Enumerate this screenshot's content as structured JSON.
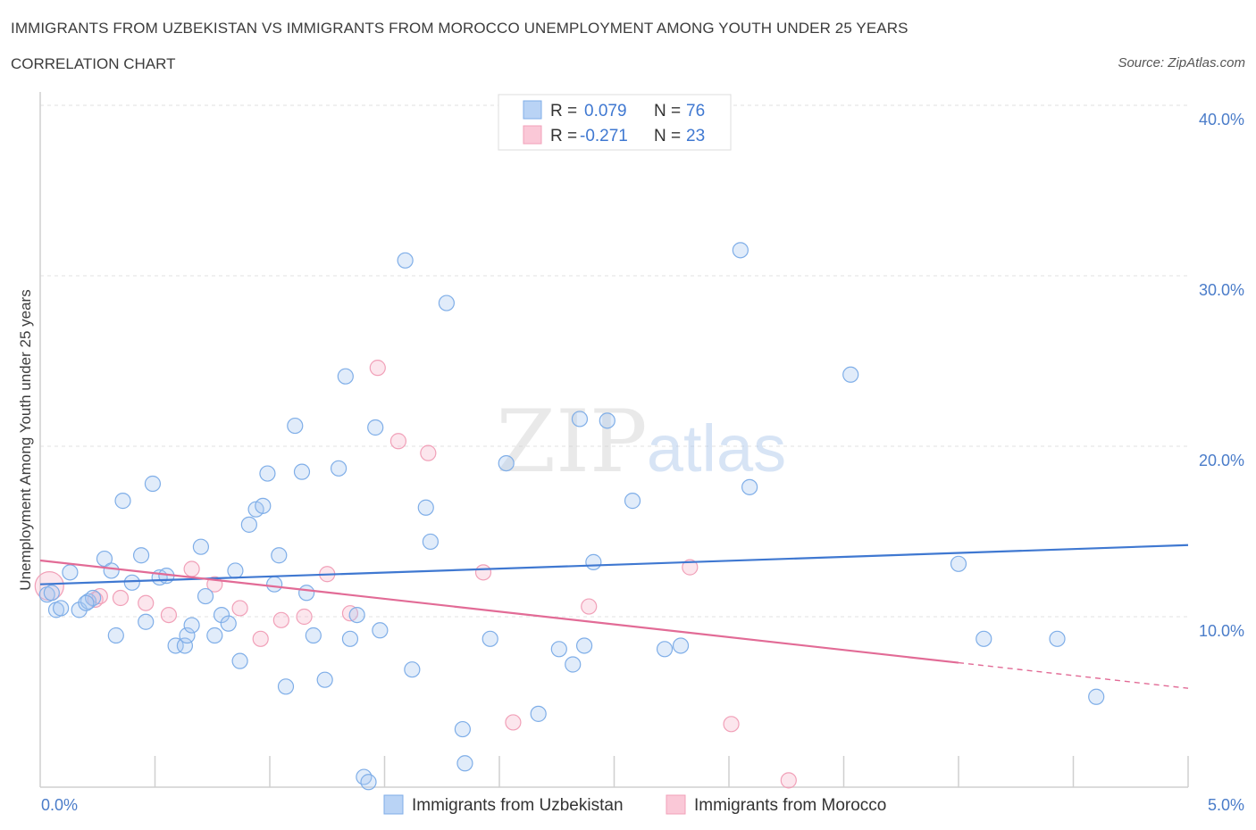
{
  "header": {
    "title": "IMMIGRANTS FROM UZBEKISTAN VS IMMIGRANTS FROM MOROCCO UNEMPLOYMENT AMONG YOUTH UNDER 25 YEARS",
    "subtitle": "CORRELATION CHART",
    "source": "Source: ZipAtlas.com"
  },
  "watermark": {
    "part1": "ZIP",
    "part2": "atlas"
  },
  "stats": [
    {
      "r_label": "R =",
      "r_value": "0.079",
      "n_label": "N =",
      "n_value": "76",
      "color": "#a9c8f0"
    },
    {
      "r_label": "R =",
      "r_value": "-0.271",
      "n_label": "N =",
      "n_value": "23",
      "color": "#f6b8cb"
    }
  ],
  "chart_data": {
    "type": "scatter",
    "title": "IMMIGRANTS FROM UZBEKISTAN VS IMMIGRANTS FROM MOROCCO UNEMPLOYMENT AMONG YOUTH UNDER 25 YEARS",
    "subtitle": "CORRELATION CHART",
    "xlabel": "",
    "ylabel": "Unemployment Among Youth under 25 years",
    "xlim": [
      0,
      5
    ],
    "ylim": [
      0,
      40
    ],
    "x_ticks": [
      {
        "value": 0,
        "label": "0.0%"
      },
      {
        "value": 5,
        "label": "5.0%"
      }
    ],
    "y_ticks": [
      {
        "value": 10,
        "label": "10.0%"
      },
      {
        "value": 20,
        "label": "20.0%"
      },
      {
        "value": 30,
        "label": "30.0%"
      },
      {
        "value": 40,
        "label": "40.0%"
      }
    ],
    "grid": true,
    "legend_position": "bottom-center",
    "series": [
      {
        "name": "Immigrants from Uzbekistan",
        "color": "#7faee8",
        "trend": {
          "x": [
            0,
            5
          ],
          "y": [
            11.9,
            14.2
          ],
          "style": "solid"
        },
        "points": [
          [
            0.03,
            11.3
          ],
          [
            0.05,
            11.4
          ],
          [
            0.07,
            10.4
          ],
          [
            0.09,
            10.5
          ],
          [
            0.13,
            12.6
          ],
          [
            0.17,
            10.4
          ],
          [
            0.21,
            10.9
          ],
          [
            0.23,
            11.1
          ],
          [
            0.28,
            13.4
          ],
          [
            0.31,
            12.7
          ],
          [
            0.33,
            8.9
          ],
          [
            0.36,
            16.8
          ],
          [
            0.4,
            12.0
          ],
          [
            0.44,
            13.6
          ],
          [
            0.46,
            9.7
          ],
          [
            0.49,
            17.8
          ],
          [
            0.52,
            12.3
          ],
          [
            0.55,
            12.4
          ],
          [
            0.59,
            8.3
          ],
          [
            0.63,
            8.3
          ],
          [
            0.64,
            8.9
          ],
          [
            0.66,
            9.5
          ],
          [
            0.7,
            14.1
          ],
          [
            0.72,
            11.2
          ],
          [
            0.76,
            8.9
          ],
          [
            0.79,
            10.1
          ],
          [
            0.82,
            9.6
          ],
          [
            0.85,
            12.7
          ],
          [
            0.87,
            7.4
          ],
          [
            0.91,
            15.4
          ],
          [
            0.94,
            16.3
          ],
          [
            0.97,
            16.5
          ],
          [
            0.99,
            18.4
          ],
          [
            1.02,
            11.9
          ],
          [
            1.04,
            13.6
          ],
          [
            1.07,
            5.9
          ],
          [
            1.11,
            21.2
          ],
          [
            1.14,
            18.5
          ],
          [
            1.16,
            11.4
          ],
          [
            1.19,
            8.9
          ],
          [
            1.24,
            6.3
          ],
          [
            1.3,
            18.7
          ],
          [
            1.33,
            24.1
          ],
          [
            1.35,
            8.7
          ],
          [
            1.38,
            10.1
          ],
          [
            1.41,
            0.6
          ],
          [
            1.43,
            0.3
          ],
          [
            1.46,
            21.1
          ],
          [
            1.48,
            9.2
          ],
          [
            1.59,
            30.9
          ],
          [
            1.62,
            6.9
          ],
          [
            1.68,
            16.4
          ],
          [
            1.7,
            14.4
          ],
          [
            1.77,
            28.4
          ],
          [
            1.84,
            3.4
          ],
          [
            1.85,
            1.4
          ],
          [
            1.96,
            8.7
          ],
          [
            2.03,
            19.0
          ],
          [
            2.17,
            4.3
          ],
          [
            2.26,
            8.1
          ],
          [
            2.32,
            7.2
          ],
          [
            2.35,
            21.6
          ],
          [
            2.37,
            8.3
          ],
          [
            2.41,
            13.2
          ],
          [
            2.47,
            21.5
          ],
          [
            2.58,
            16.8
          ],
          [
            2.72,
            8.1
          ],
          [
            2.79,
            8.3
          ],
          [
            3.05,
            31.5
          ],
          [
            3.09,
            17.6
          ],
          [
            3.53,
            24.2
          ],
          [
            4.0,
            13.1
          ],
          [
            4.11,
            8.7
          ],
          [
            4.43,
            8.7
          ],
          [
            4.6,
            5.3
          ],
          [
            0.2,
            10.8
          ]
        ]
      },
      {
        "name": "Immigrants from Morocco",
        "color": "#f1a0b8",
        "trend": {
          "x": [
            0,
            4.0
          ],
          "y": [
            13.3,
            7.3
          ],
          "style": "solid",
          "extended": {
            "x": [
              4.0,
              5.0
            ],
            "y": [
              7.3,
              5.8
            ],
            "style": "dashed"
          }
        },
        "points": [
          [
            0.04,
            11.8
          ],
          [
            0.24,
            11.0
          ],
          [
            0.26,
            11.2
          ],
          [
            0.35,
            11.1
          ],
          [
            0.46,
            10.8
          ],
          [
            0.56,
            10.1
          ],
          [
            0.66,
            12.8
          ],
          [
            0.76,
            11.9
          ],
          [
            0.87,
            10.5
          ],
          [
            0.96,
            8.7
          ],
          [
            1.05,
            9.8
          ],
          [
            1.15,
            10.0
          ],
          [
            1.25,
            12.5
          ],
          [
            1.35,
            10.2
          ],
          [
            1.47,
            24.6
          ],
          [
            1.56,
            20.3
          ],
          [
            1.69,
            19.6
          ],
          [
            1.93,
            12.6
          ],
          [
            2.06,
            3.8
          ],
          [
            2.39,
            10.6
          ],
          [
            2.83,
            12.9
          ],
          [
            3.01,
            3.7
          ],
          [
            3.26,
            0.4
          ]
        ]
      }
    ]
  }
}
